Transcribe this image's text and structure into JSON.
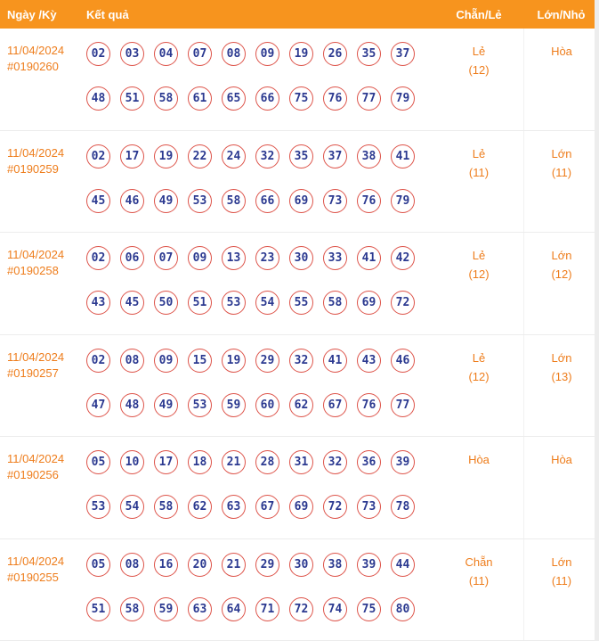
{
  "colors": {
    "header_bg": "#F7941E",
    "accent_text": "#EE7D1C",
    "ball_border": "#DD5349",
    "ball_number": "#2B3990"
  },
  "header": {
    "date_label": "Ngày /Kỳ",
    "result_label": "Kết quả",
    "even_odd_label": "Chẵn/Lẻ",
    "big_small_label": "Lớn/Nhỏ"
  },
  "rows": [
    {
      "date": "11/04/2024",
      "draw": "#0190260",
      "line1": [
        "02",
        "03",
        "04",
        "07",
        "08",
        "09",
        "19",
        "26",
        "35",
        "37"
      ],
      "line2": [
        "48",
        "51",
        "58",
        "61",
        "65",
        "66",
        "75",
        "76",
        "77",
        "79"
      ],
      "even_odd": "Lẻ",
      "even_odd_count": "(12)",
      "big_small": "Hòa",
      "big_small_count": ""
    },
    {
      "date": "11/04/2024",
      "draw": "#0190259",
      "line1": [
        "02",
        "17",
        "19",
        "22",
        "24",
        "32",
        "35",
        "37",
        "38",
        "41"
      ],
      "line2": [
        "45",
        "46",
        "49",
        "53",
        "58",
        "66",
        "69",
        "73",
        "76",
        "79"
      ],
      "even_odd": "Lẻ",
      "even_odd_count": "(11)",
      "big_small": "Lớn",
      "big_small_count": "(11)"
    },
    {
      "date": "11/04/2024",
      "draw": "#0190258",
      "line1": [
        "02",
        "06",
        "07",
        "09",
        "13",
        "23",
        "30",
        "33",
        "41",
        "42"
      ],
      "line2": [
        "43",
        "45",
        "50",
        "51",
        "53",
        "54",
        "55",
        "58",
        "69",
        "72"
      ],
      "even_odd": "Lẻ",
      "even_odd_count": "(12)",
      "big_small": "Lớn",
      "big_small_count": "(12)"
    },
    {
      "date": "11/04/2024",
      "draw": "#0190257",
      "line1": [
        "02",
        "08",
        "09",
        "15",
        "19",
        "29",
        "32",
        "41",
        "43",
        "46"
      ],
      "line2": [
        "47",
        "48",
        "49",
        "53",
        "59",
        "60",
        "62",
        "67",
        "76",
        "77"
      ],
      "even_odd": "Lẻ",
      "even_odd_count": "(12)",
      "big_small": "Lớn",
      "big_small_count": "(13)"
    },
    {
      "date": "11/04/2024",
      "draw": "#0190256",
      "line1": [
        "05",
        "10",
        "17",
        "18",
        "21",
        "28",
        "31",
        "32",
        "36",
        "39"
      ],
      "line2": [
        "53",
        "54",
        "58",
        "62",
        "63",
        "67",
        "69",
        "72",
        "73",
        "78"
      ],
      "even_odd": "Hòa",
      "even_odd_count": "",
      "big_small": "Hòa",
      "big_small_count": ""
    },
    {
      "date": "11/04/2024",
      "draw": "#0190255",
      "line1": [
        "05",
        "08",
        "16",
        "20",
        "21",
        "29",
        "30",
        "38",
        "39",
        "44"
      ],
      "line2": [
        "51",
        "58",
        "59",
        "63",
        "64",
        "71",
        "72",
        "74",
        "75",
        "80"
      ],
      "even_odd": "Chẵn",
      "even_odd_count": "(11)",
      "big_small": "Lớn",
      "big_small_count": "(11)"
    }
  ]
}
